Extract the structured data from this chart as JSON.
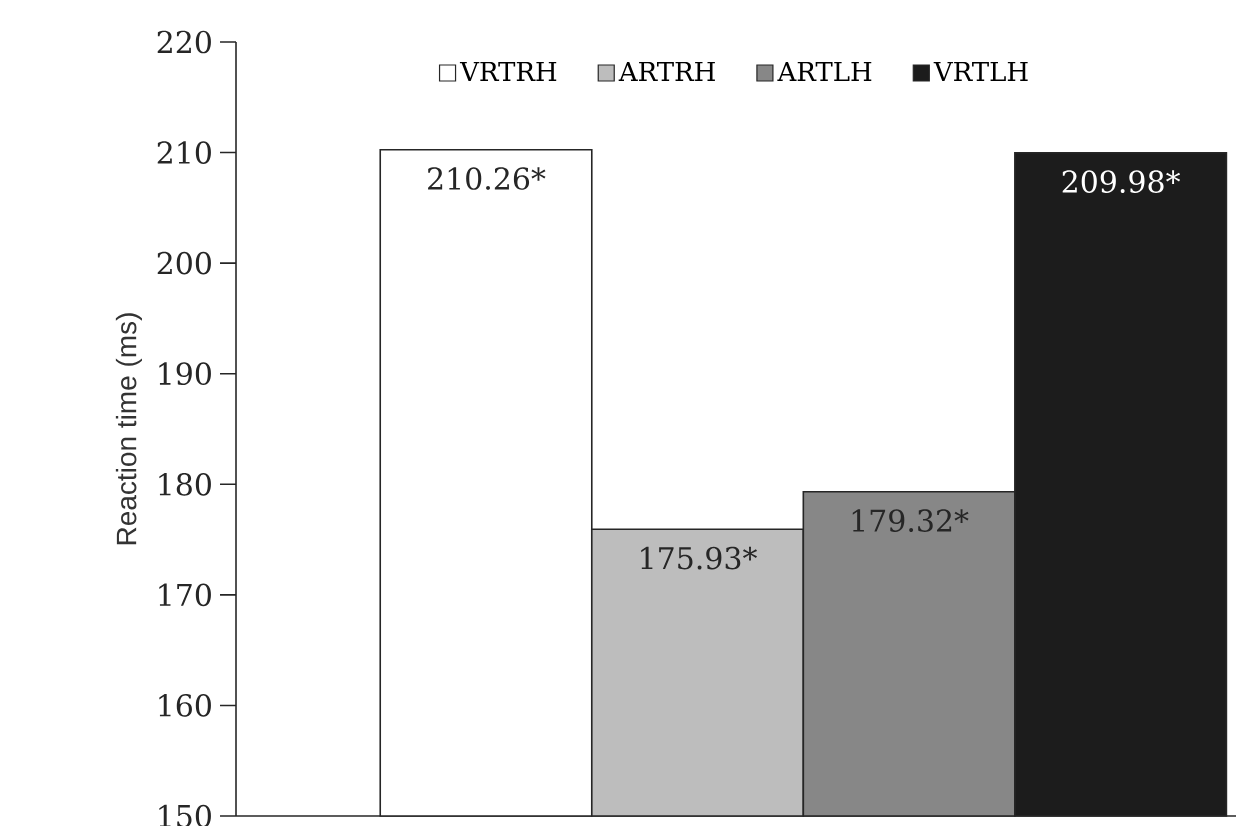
{
  "chart_data": {
    "type": "bar",
    "ylabel": "Reaction time (ms)",
    "categories": [
      null
    ],
    "series": [
      {
        "name": "VRTRH",
        "color": "#ffffff",
        "values": [
          210.26
        ],
        "value_labels": [
          "210.26*"
        ]
      },
      {
        "name": "ARTRH",
        "color": "#bdbdbd",
        "values": [
          175.93
        ],
        "value_labels": [
          "175.93*"
        ]
      },
      {
        "name": "ARTLH",
        "color": "#878787",
        "values": [
          179.32
        ],
        "value_labels": [
          "179.32*"
        ]
      },
      {
        "name": "VRTLH",
        "color": "#1c1c1c",
        "values": [
          209.98
        ],
        "value_labels": [
          "209.98*"
        ]
      }
    ],
    "ylim": [
      150,
      220
    ],
    "yticks": [
      150,
      160,
      170,
      180,
      190,
      200,
      210,
      220
    ],
    "legend": "top",
    "grid": false
  }
}
